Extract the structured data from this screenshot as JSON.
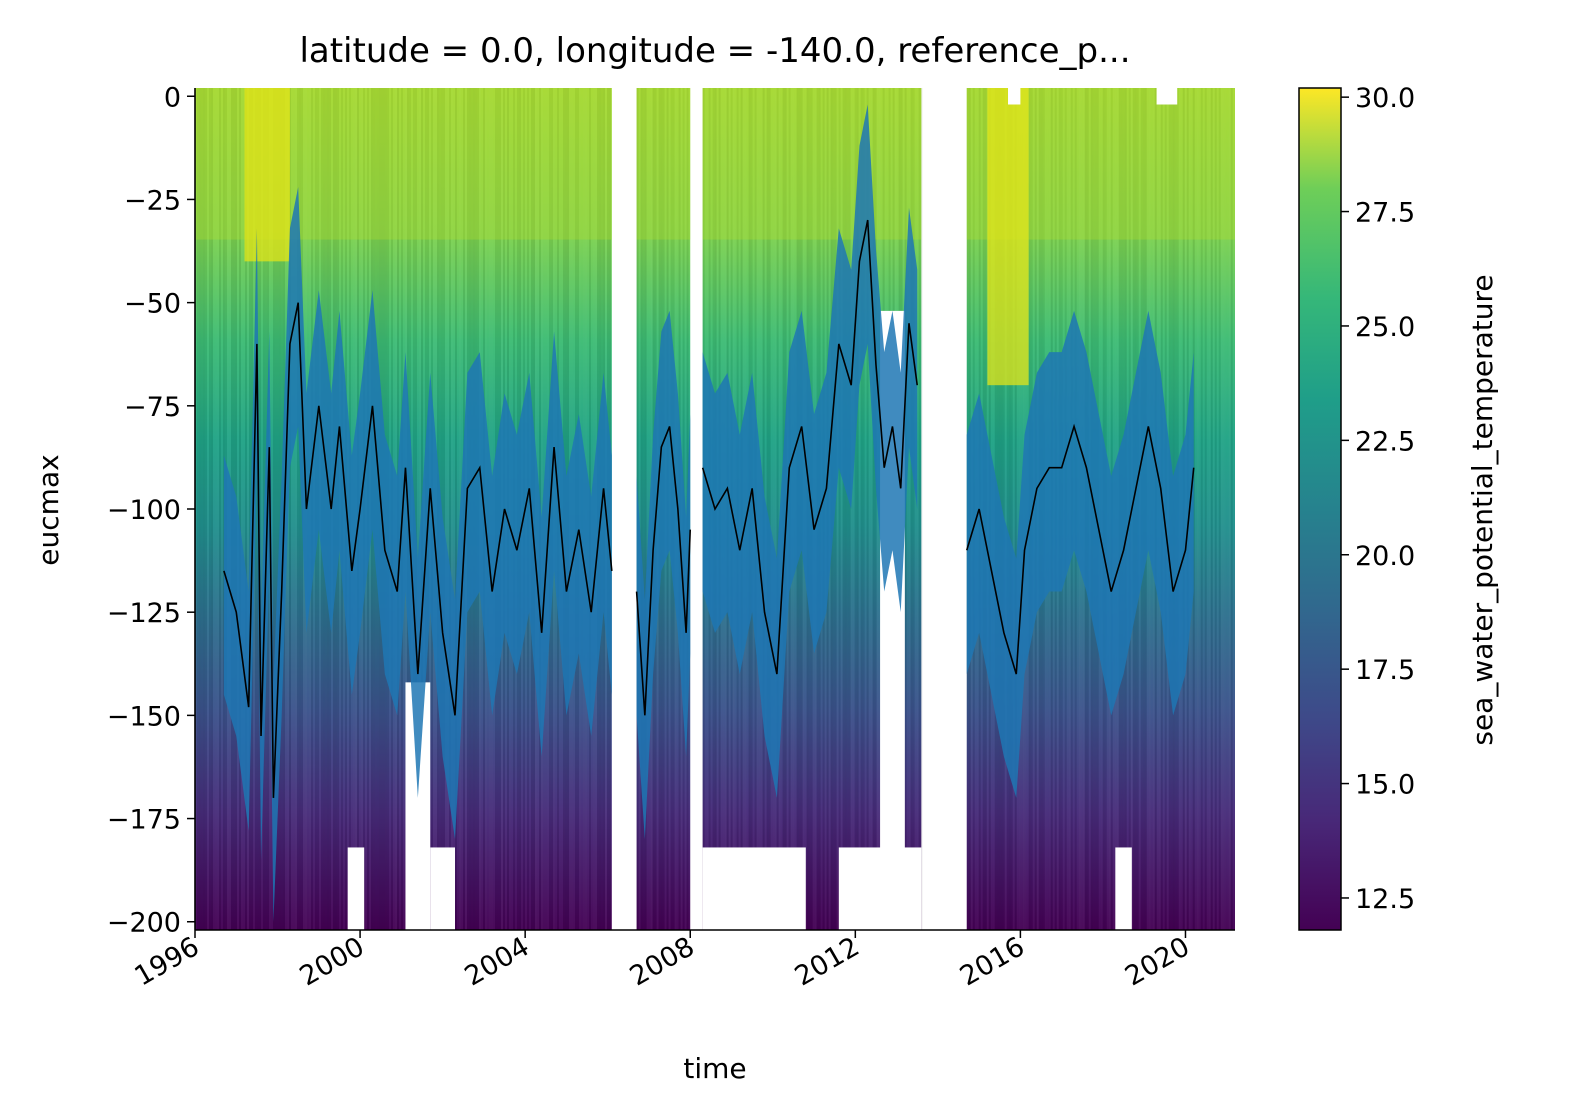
{
  "chart_data": {
    "type": "heatmap",
    "title": "latitude = 0.0, longitude = -140.0, reference_p...",
    "xlabel": "time",
    "ylabel": "eucmax",
    "xlim": [
      1996.0,
      2021.2
    ],
    "ylim": [
      -202,
      2
    ],
    "x_ticks": [
      "1996",
      "2000",
      "2004",
      "2008",
      "2012",
      "2016",
      "2020"
    ],
    "y_ticks": [
      0,
      -25,
      -50,
      -75,
      -100,
      -125,
      -150,
      -175,
      -200
    ],
    "colorbar": {
      "label": "sea_water_potential_temperature",
      "range": [
        11.8,
        30.2
      ],
      "ticks": [
        30.0,
        27.5,
        25.0,
        22.5,
        20.0,
        17.5,
        15.0,
        12.5
      ],
      "colormap": "viridis"
    },
    "data_segments": [
      {
        "start": 1996.0,
        "end": 2006.1
      },
      {
        "start": 2006.7,
        "end": 2008.0
      },
      {
        "start": 2008.3,
        "end": 2013.6
      },
      {
        "start": 2014.7,
        "end": 2021.2
      }
    ],
    "missing_blocks": [
      {
        "x0": 1999.7,
        "x1": 2000.1,
        "y_top": -182,
        "y_bottom": -202
      },
      {
        "x0": 2001.1,
        "x1": 2001.7,
        "y_top": -142,
        "y_bottom": -202
      },
      {
        "x0": 2001.7,
        "x1": 2002.3,
        "y_top": -182,
        "y_bottom": -202
      },
      {
        "x0": 2008.3,
        "x1": 2010.8,
        "y_top": -182,
        "y_bottom": -202
      },
      {
        "x0": 2011.6,
        "x1": 2013.6,
        "y_top": -182,
        "y_bottom": -202
      },
      {
        "x0": 2012.6,
        "x1": 2013.2,
        "y_top": -52,
        "y_bottom": -202
      },
      {
        "x0": 2018.3,
        "x1": 2018.7,
        "y_top": -182,
        "y_bottom": -202
      },
      {
        "x0": 2019.3,
        "x1": 2019.8,
        "y_top": 2,
        "y_bottom": -2
      },
      {
        "x0": 2015.7,
        "x1": 2016.0,
        "y_top": 2,
        "y_bottom": -2
      }
    ],
    "eucmax_series": [
      {
        "segment": 0,
        "x": [
          1996.7,
          1997.0,
          1997.3,
          1997.5,
          1997.6,
          1997.8,
          1997.9,
          1998.1,
          1998.3,
          1998.5,
          1998.7,
          1999.0,
          1999.3,
          1999.5,
          1999.8,
          2000.0,
          2000.3,
          2000.6,
          2000.9,
          2001.1,
          2001.4,
          2001.7,
          2002.0,
          2002.3,
          2002.6,
          2002.9,
          2003.2,
          2003.5,
          2003.8,
          2004.1,
          2004.4,
          2004.7,
          2005.0,
          2005.3,
          2005.6,
          2005.9,
          2006.1
        ],
        "y": [
          -115,
          -125,
          -148,
          -60,
          -155,
          -85,
          -170,
          -120,
          -60,
          -50,
          -100,
          -75,
          -100,
          -80,
          -115,
          -100,
          -75,
          -110,
          -120,
          -90,
          -140,
          -95,
          -130,
          -150,
          -95,
          -90,
          -120,
          -100,
          -110,
          -95,
          -130,
          -85,
          -120,
          -105,
          -125,
          -95,
          -115
        ]
      },
      {
        "segment": 1,
        "x": [
          2006.7,
          2006.9,
          2007.1,
          2007.3,
          2007.5,
          2007.7,
          2007.9,
          2008.0
        ],
        "y": [
          -120,
          -150,
          -110,
          -85,
          -80,
          -100,
          -130,
          -105
        ]
      },
      {
        "segment": 2,
        "x": [
          2008.3,
          2008.6,
          2008.9,
          2009.2,
          2009.5,
          2009.8,
          2010.1,
          2010.4,
          2010.7,
          2011.0,
          2011.3,
          2011.6,
          2011.9,
          2012.1,
          2012.3,
          2012.5,
          2012.7,
          2012.9,
          2013.1,
          2013.3,
          2013.5
        ],
        "y": [
          -90,
          -100,
          -95,
          -110,
          -95,
          -125,
          -140,
          -90,
          -80,
          -105,
          -95,
          -60,
          -70,
          -40,
          -30,
          -65,
          -90,
          -80,
          -95,
          -55,
          -70
        ]
      },
      {
        "segment": 3,
        "x": [
          2014.7,
          2015.0,
          2015.3,
          2015.6,
          2015.9,
          2016.1,
          2016.4,
          2016.7,
          2017.0,
          2017.3,
          2017.6,
          2017.9,
          2018.2,
          2018.5,
          2018.8,
          2019.1,
          2019.4,
          2019.7,
          2020.0,
          2020.2
        ],
        "y": [
          -110,
          -100,
          -115,
          -130,
          -140,
          -110,
          -95,
          -90,
          -90,
          -80,
          -90,
          -105,
          -120,
          -110,
          -95,
          -80,
          -95,
          -120,
          -110,
          -90
        ]
      }
    ]
  }
}
